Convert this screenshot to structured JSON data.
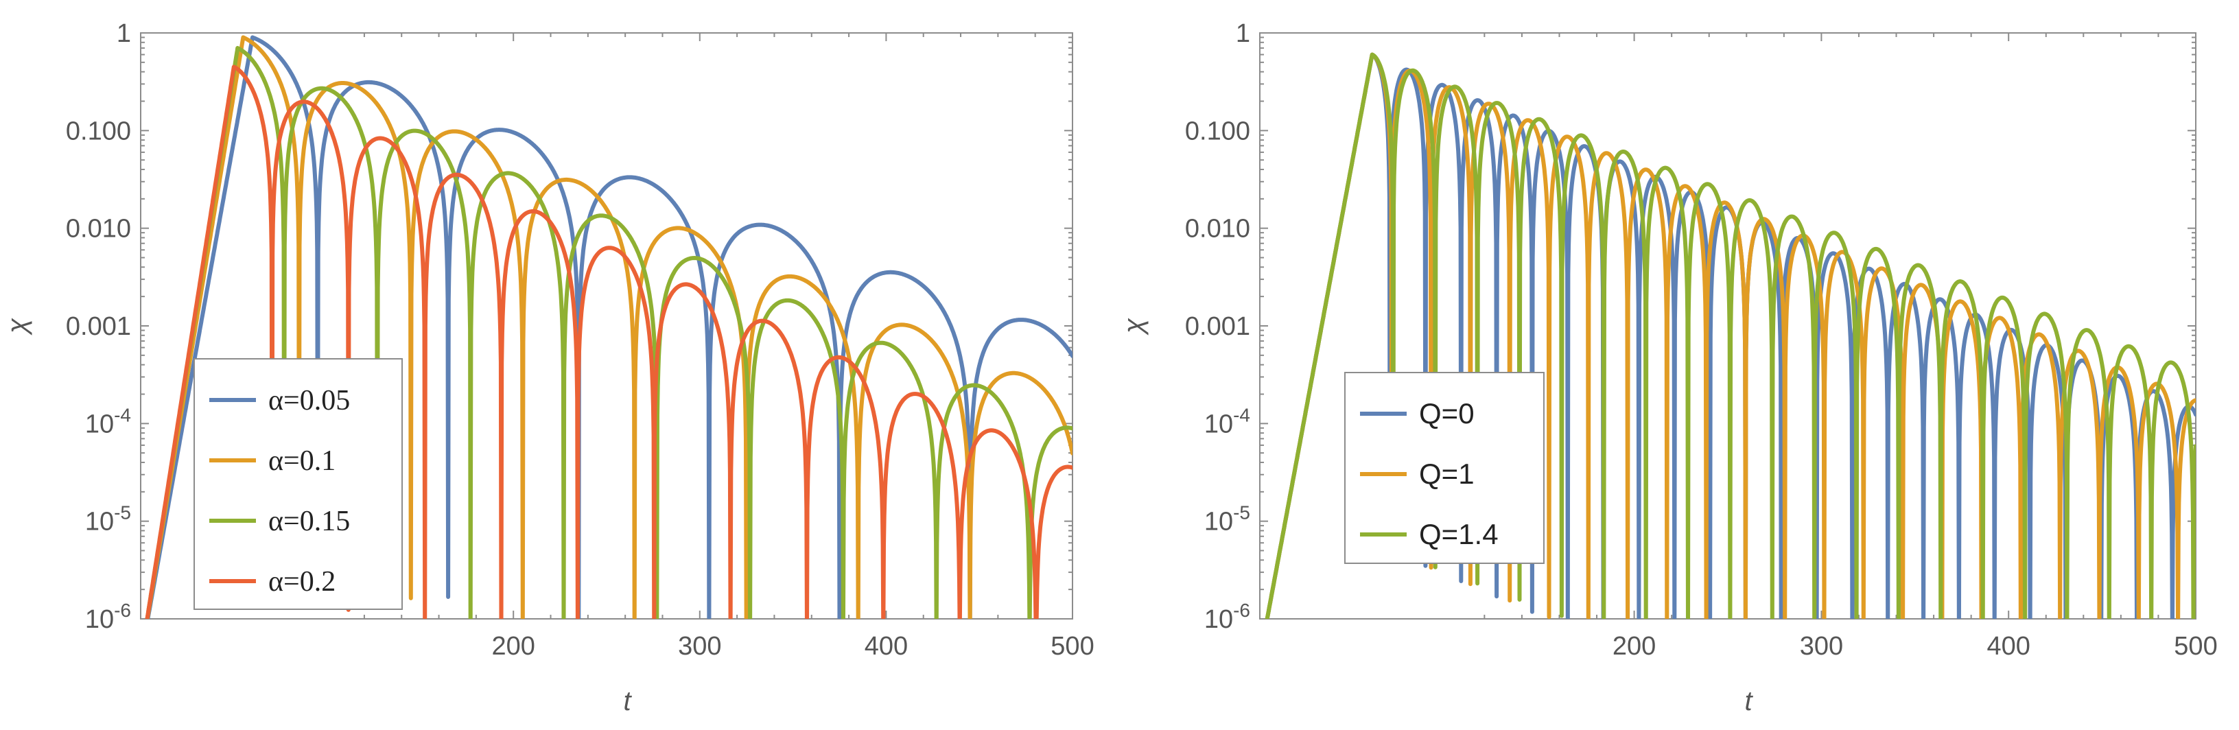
{
  "chart_data": [
    {
      "type": "line",
      "xlabel": "t",
      "ylabel": "χ",
      "yscale": "log",
      "xlim": [
        0,
        500
      ],
      "ylim": [
        1e-06,
        1
      ],
      "xticks": [
        {
          "value": 200,
          "label": "200"
        },
        {
          "value": 300,
          "label": "300"
        },
        {
          "value": 400,
          "label": "400"
        },
        {
          "value": 500,
          "label": "500"
        }
      ],
      "yticks": [
        {
          "value": 1,
          "label": "1"
        },
        {
          "value": 0.1,
          "label": "0.100"
        },
        {
          "value": 0.01,
          "label": "0.010"
        },
        {
          "value": 0.001,
          "label": "0.001"
        },
        {
          "value": 0.0001,
          "label": "10",
          "exp": "-4"
        },
        {
          "value": 1e-05,
          "label": "10",
          "exp": "-5"
        },
        {
          "value": 1e-06,
          "label": "10",
          "exp": "-6"
        }
      ],
      "legend_position": "bottom-left",
      "series": [
        {
          "name": "α=0.05",
          "color": "#5e81b5",
          "peak_t": 60,
          "peak_amp": 0.9,
          "decay": 0.016,
          "period": 140,
          "start": 1,
          "break": [
            100,
            0.3
          ]
        },
        {
          "name": "α=0.1",
          "color": "#e19c24",
          "peak_t": 55,
          "peak_amp": 0.9,
          "decay": 0.019,
          "period": 120,
          "start": 1,
          "break": [
            85,
            0.6
          ]
        },
        {
          "name": "α=0.15",
          "color": "#8fb032",
          "peak_t": 52,
          "peak_amp": 0.7,
          "decay": 0.02,
          "period": 100,
          "start": 1,
          "break": [
            80,
            0.4
          ]
        },
        {
          "name": "α=0.2",
          "color": "#eb6235",
          "peak_t": 50,
          "peak_amp": 0.45,
          "decay": 0.021,
          "period": 82,
          "start": 1,
          "break": [
            75,
            0.3
          ]
        }
      ]
    },
    {
      "type": "line",
      "xlabel": "t",
      "ylabel": "χ",
      "yscale": "log",
      "xlim": [
        0,
        500
      ],
      "ylim": [
        1e-06,
        1
      ],
      "xticks": [
        {
          "value": 200,
          "label": "200"
        },
        {
          "value": 300,
          "label": "300"
        },
        {
          "value": 400,
          "label": "400"
        },
        {
          "value": 500,
          "label": "500"
        }
      ],
      "yticks": [
        {
          "value": 1,
          "label": "1"
        },
        {
          "value": 0.1,
          "label": "0.100"
        },
        {
          "value": 0.01,
          "label": "0.010"
        },
        {
          "value": 0.001,
          "label": "0.001"
        },
        {
          "value": 0.0001,
          "label": "10",
          "exp": "-4"
        },
        {
          "value": 1e-05,
          "label": "10",
          "exp": "-5"
        },
        {
          "value": 1e-06,
          "label": "10",
          "exp": "-6"
        }
      ],
      "legend_position": "center-left",
      "series": [
        {
          "name": "Q=0",
          "color": "#5e81b5",
          "peak_t": 60,
          "peak_amp": 0.6,
          "decay": 0.019,
          "period": 38,
          "start": 1,
          "break": [
            75,
            0.5
          ]
        },
        {
          "name": "Q=1",
          "color": "#e19c24",
          "peak_t": 60,
          "peak_amp": 0.6,
          "decay": 0.0185,
          "period": 42,
          "start": 1,
          "break": [
            80,
            0.5
          ]
        },
        {
          "name": "Q=1.4",
          "color": "#8fb032",
          "peak_t": 60,
          "peak_amp": 0.6,
          "decay": 0.017,
          "period": 45,
          "start": 1,
          "break": [
            85,
            0.5
          ]
        }
      ]
    }
  ]
}
